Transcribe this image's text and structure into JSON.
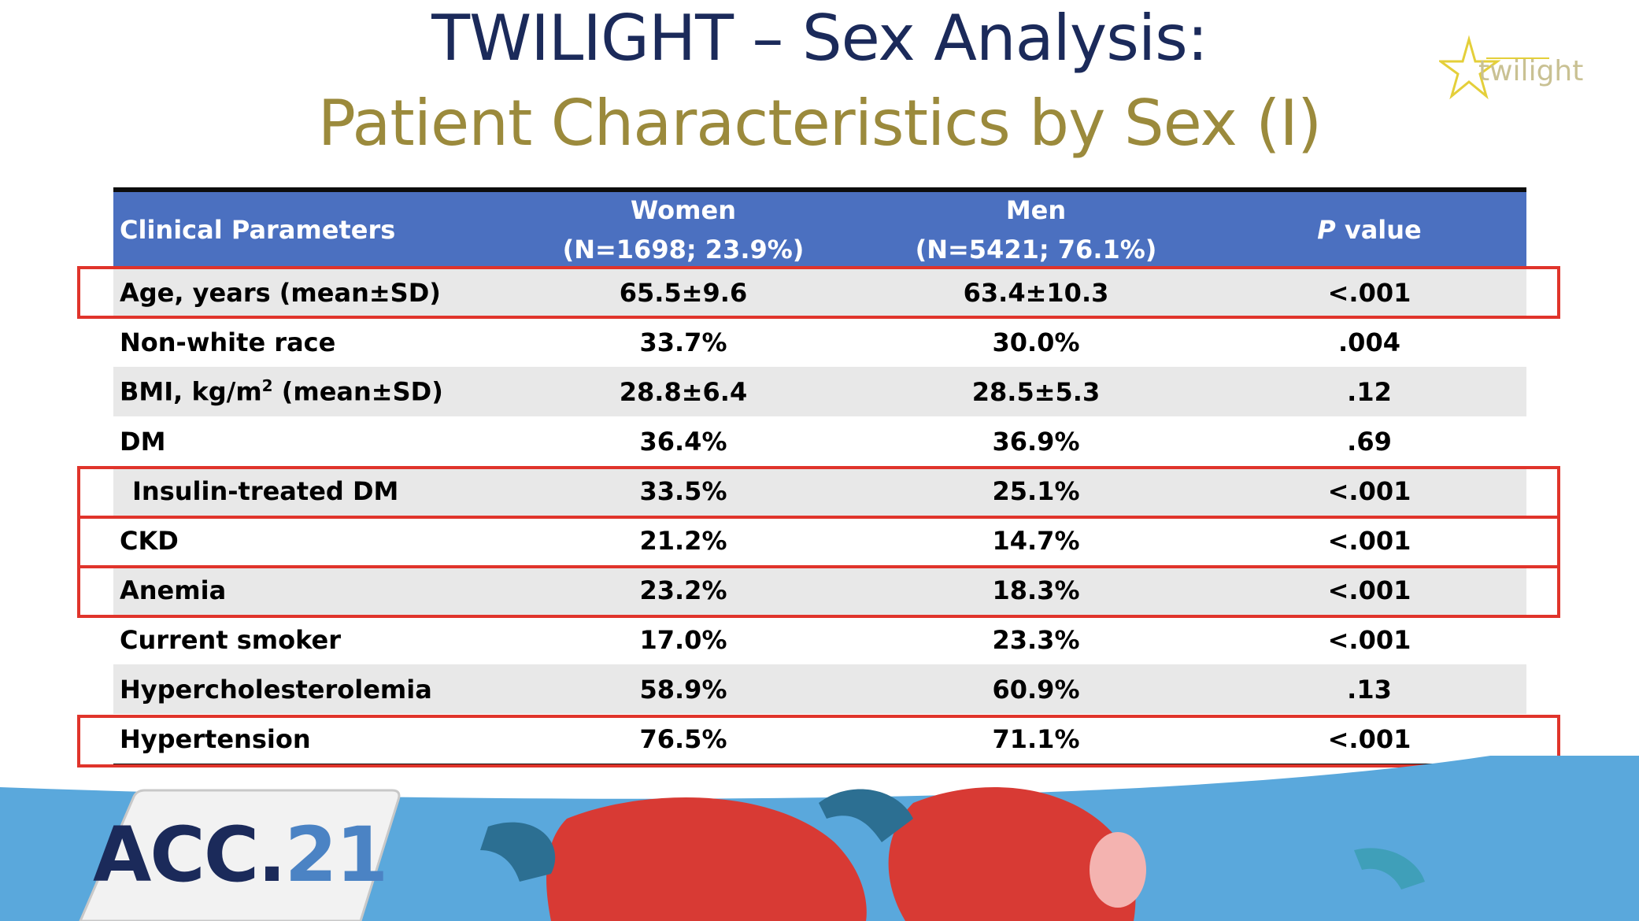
{
  "title": {
    "line1": "TWILIGHT – Sex Analysis:",
    "line2": "Patient Characteristics by Sex (I)"
  },
  "logo_top": {
    "text": "twilight",
    "icon": "star-icon"
  },
  "table": {
    "headers": {
      "param": "Clinical Parameters",
      "women_label": "Women",
      "women_n": "(N=1698; 23.9%)",
      "men_label": "Men",
      "men_n": "(N=5421; 76.1%)",
      "p_italic": "P",
      "p_rest": " value"
    },
    "rows": [
      {
        "label": "Age, years (mean±SD)",
        "women": "65.5±9.6",
        "men": "63.4±10.3",
        "p": "<.001"
      },
      {
        "label": "Non-white race",
        "women": "33.7%",
        "men": "30.0%",
        "p": ".004"
      },
      {
        "label_pre": "BMI, kg/m",
        "label_sup": "2",
        "label_post": " (mean±SD)",
        "women": "28.8±6.4",
        "men": "28.5±5.3",
        "p": ".12"
      },
      {
        "label": "DM",
        "women": "36.4%",
        "men": "36.9%",
        "p": ".69"
      },
      {
        "label": "Insulin-treated DM",
        "women": "33.5%",
        "men": "25.1%",
        "p": "<.001"
      },
      {
        "label": "CKD",
        "women": "21.2%",
        "men": "14.7%",
        "p": "<.001"
      },
      {
        "label": "Anemia",
        "women": "23.2%",
        "men": "18.3%",
        "p": "<.001"
      },
      {
        "label": "Current smoker",
        "women": "17.0%",
        "men": "23.3%",
        "p": "<.001"
      },
      {
        "label": "Hypercholesterolemia",
        "women": "58.9%",
        "men": "60.9%",
        "p": ".13"
      },
      {
        "label": "Hypertension",
        "women": "76.5%",
        "men": "71.1%",
        "p": "<.001"
      }
    ]
  },
  "footer": {
    "badge_prefix": "ACC.",
    "badge_number": "21"
  },
  "colors": {
    "title_navy": "#1b2a5a",
    "title_gold": "#9b8a3c",
    "header_blue": "#4b70c0",
    "highlight_red": "#e0342b",
    "footer_blue": "#5aa8dc"
  }
}
